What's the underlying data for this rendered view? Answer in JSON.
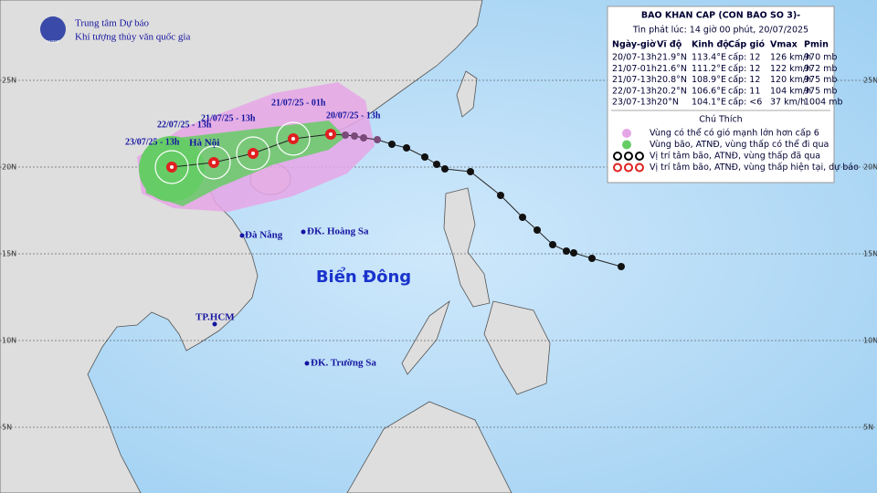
{
  "header": {
    "agency": "Trung tâm Dự báo",
    "institute": "Khí tượng thủy văn quốc gia",
    "logo": "NCHMF"
  },
  "info": {
    "title": "BAO KHAN CAP (CON BAO SO 3)-",
    "issued": "Tin phát lúc: 14 giờ 00 phút, 20/07/2025",
    "columns": [
      "Ngày-giờ",
      "Vĩ độ",
      "Kinh độ",
      "Cấp gió",
      "Vmax",
      "Pmin"
    ],
    "rows": [
      [
        "20/07-13h",
        "21.9°N",
        "113.4°E",
        "cấp: 12",
        "126 km/h",
        "970 mb"
      ],
      [
        "21/07-01h",
        "21.6°N",
        "111.2°E",
        "cấp: 12",
        "122 km/h",
        "972 mb"
      ],
      [
        "21/07-13h",
        "20.8°N",
        "108.9°E",
        "cấp: 12",
        "120 km/h",
        "975 mb"
      ],
      [
        "22/07-13h",
        "20.2°N",
        "106.6°E",
        "cấp: 11",
        "104 km/h",
        "975 mb"
      ],
      [
        "23/07-13h",
        "20°N",
        "104.1°E",
        "cấp: <6",
        "37 km/h",
        "1004 mb"
      ]
    ]
  },
  "legend": {
    "title": "Chú Thích",
    "items": [
      "Vùng có thể có gió mạnh lớn hơn cấp 6",
      "Vùng bão, ATNĐ, vùng thấp có thể đi qua",
      "Vị trí tâm bão, ATNĐ, vùng thấp đã qua",
      "Vị trí tâm bão, ATNĐ, vùng thấp hiện tại, dự báo"
    ]
  },
  "map": {
    "sea": "Biển Đông",
    "places": [
      "Hà Nội",
      "Đà Nẵng",
      "ĐK. Hoàng Sa",
      "TP.HCM",
      "ĐK. Trường Sa"
    ],
    "forecast_labels": [
      "23/07/25 - 13h",
      "22/07/25 - 13h",
      "21/07/25 - 13h",
      "21/07/25 - 01h",
      "20/07/25 - 13h"
    ],
    "lat_labels": [
      "25N",
      "20N",
      "15N",
      "10N",
      "5N"
    ]
  }
}
